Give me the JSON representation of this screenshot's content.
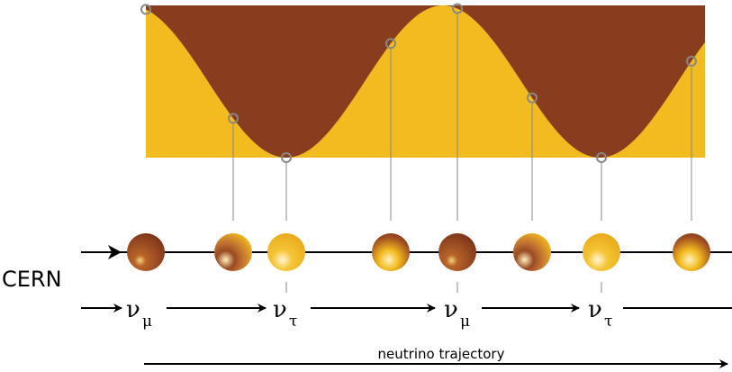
{
  "labels": {
    "source": "CERN",
    "states": [
      {
        "symbol": "ν",
        "flavor": "μ"
      },
      {
        "symbol": "ν",
        "flavor": "τ"
      },
      {
        "symbol": "ν",
        "flavor": "μ"
      },
      {
        "symbol": "ν",
        "flavor": "τ"
      }
    ],
    "trajectory": "neutrino trajectory"
  }
}
